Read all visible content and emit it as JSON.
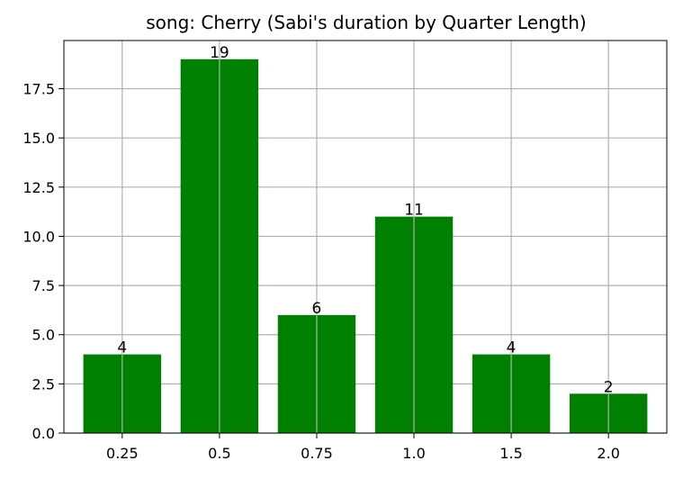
{
  "chart_data": {
    "type": "bar",
    "title": "song: Cherry (Sabi's duration by Quarter Length)",
    "xlabel": "",
    "ylabel": "",
    "categories": [
      "0.25",
      "0.5",
      "0.75",
      "1.0",
      "1.5",
      "2.0"
    ],
    "values": [
      4,
      19,
      6,
      11,
      4,
      2
    ],
    "ylim": [
      0,
      19.95
    ],
    "yticks": [
      "0.0",
      "2.5",
      "5.0",
      "7.5",
      "10.0",
      "12.5",
      "15.0",
      "17.5"
    ],
    "grid": true,
    "legend": "none",
    "bar_color": "#008000",
    "grid_color": "#b0b0b0"
  }
}
